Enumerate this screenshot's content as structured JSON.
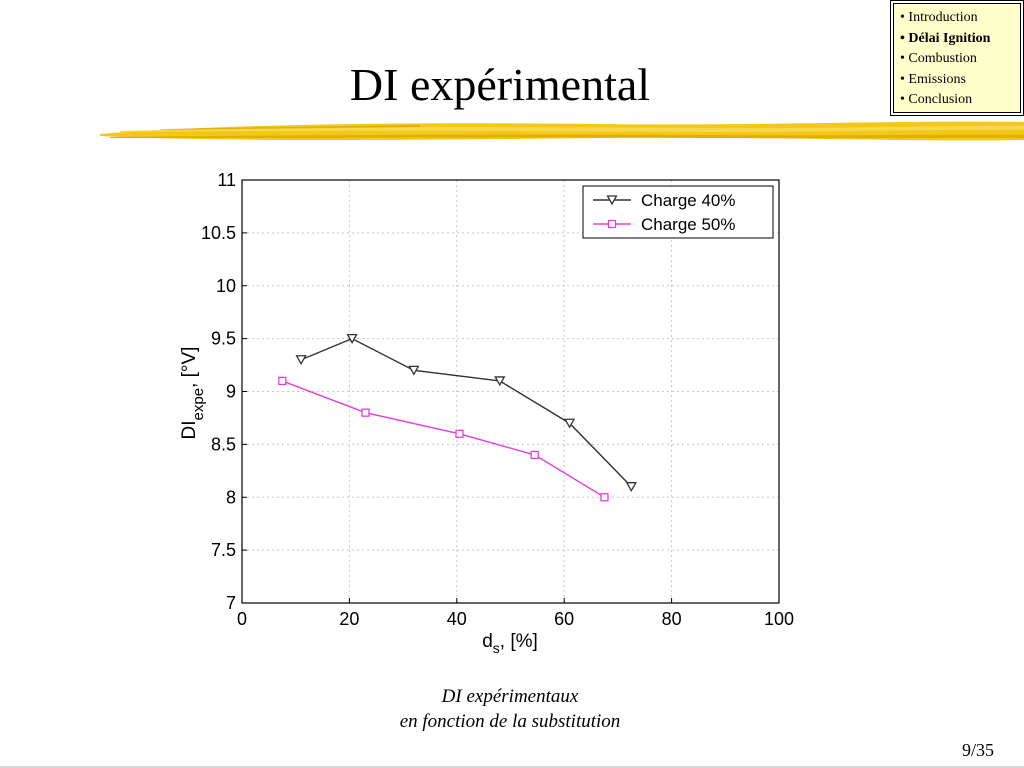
{
  "slide": {
    "title": "DI expérimental",
    "caption_line1": "DI expérimentaux",
    "caption_line2": "en fonction de la substitution",
    "page_number": "9/35"
  },
  "nav": {
    "items": [
      {
        "label": "• Introduction",
        "active": false
      },
      {
        "label": "• Délai Ignition",
        "active": true
      },
      {
        "label": "• Combustion",
        "active": false
      },
      {
        "label": "• Emissions",
        "active": false
      },
      {
        "label": "• Conclusion",
        "active": false
      }
    ]
  },
  "colors": {
    "brush": "#f2c200",
    "nav_bg": "#ffffcc",
    "series_40": "#333333",
    "series_50": "#e040e0"
  },
  "chart_data": {
    "type": "line",
    "xlabel_main": "d",
    "xlabel_sub": "s",
    "xlabel_rest": ", [%]",
    "ylabel_main": "DI",
    "ylabel_sub": "expe",
    "ylabel_rest": ", [°V]",
    "xlim": [
      0,
      100
    ],
    "ylim": [
      7,
      11
    ],
    "xticks": [
      0,
      20,
      40,
      60,
      80,
      100
    ],
    "yticks": [
      7,
      7.5,
      8,
      8.5,
      9,
      9.5,
      10,
      10.5,
      11
    ],
    "ytick_labels": [
      "7",
      "7.5",
      "8",
      "8.5",
      "9",
      "9.5",
      "10",
      "10.5",
      "11"
    ],
    "grid": true,
    "legend_position": "top-right",
    "series": [
      {
        "name": "Charge 40%",
        "marker": "triangle-down",
        "color": "#333333",
        "x": [
          11,
          20.5,
          32,
          48,
          61,
          72.5
        ],
        "y": [
          9.3,
          9.5,
          9.2,
          9.1,
          8.7,
          8.1
        ]
      },
      {
        "name": "Charge 50%",
        "marker": "square",
        "color": "#e040e0",
        "x": [
          7.5,
          23,
          40.5,
          54.5,
          67.5
        ],
        "y": [
          9.1,
          8.8,
          8.6,
          8.4,
          8.0
        ]
      }
    ]
  }
}
